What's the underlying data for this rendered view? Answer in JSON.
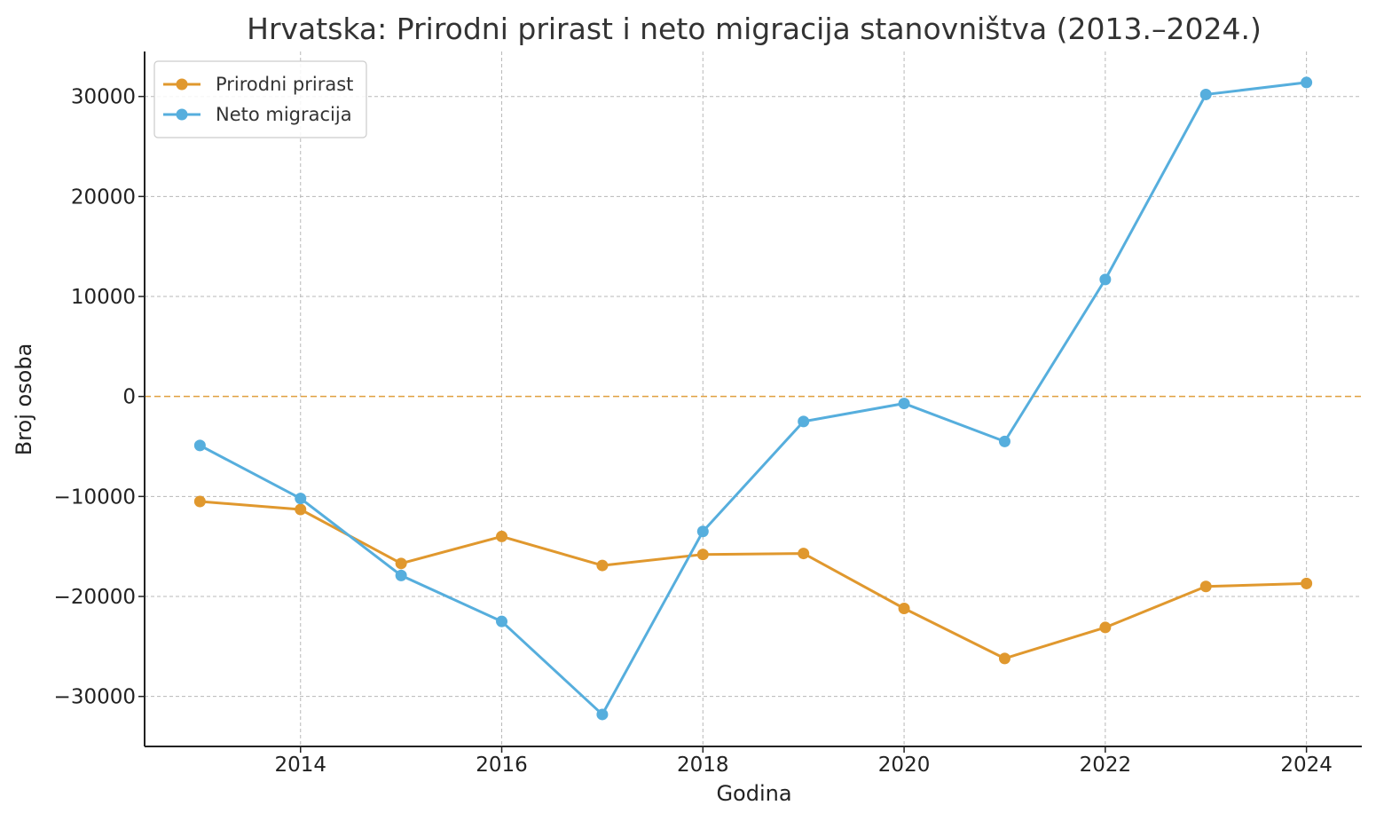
{
  "chart_data": {
    "type": "line",
    "title": "Hrvatska: Prirodni prirast i neto migracija stanovništva (2013.–2024.)",
    "xlabel": "Godina",
    "ylabel": "Broj osoba",
    "x": [
      2013,
      2014,
      2015,
      2016,
      2017,
      2018,
      2019,
      2020,
      2021,
      2022,
      2023,
      2024
    ],
    "xlim": [
      2012.45,
      2024.55
    ],
    "ylim": [
      -35000,
      34500
    ],
    "xticks": [
      2014,
      2016,
      2018,
      2020,
      2022,
      2024
    ],
    "xtick_labels": [
      "2014",
      "2016",
      "2018",
      "2020",
      "2022",
      "2024"
    ],
    "yticks": [
      -30000,
      -20000,
      -10000,
      0,
      10000,
      20000,
      30000
    ],
    "ytick_labels": [
      "−30000",
      "−20000",
      "−10000",
      "0",
      "10000",
      "20000",
      "30000"
    ],
    "grid": true,
    "zero_line": {
      "value": 0,
      "color": "#e0a040"
    },
    "legend_position": "top-left",
    "series": [
      {
        "name": "Prirodni prirast",
        "color": "#e0982e",
        "values": [
          -10500,
          -11300,
          -16700,
          -14000,
          -16900,
          -15800,
          -15700,
          -21200,
          -26200,
          -23100,
          -19000,
          -18700
        ]
      },
      {
        "name": "Neto migracija",
        "color": "#56aedd",
        "values": [
          -4900,
          -10200,
          -17900,
          -22500,
          -31800,
          -13500,
          -2500,
          -700,
          -4500,
          11700,
          30200,
          31400
        ]
      }
    ]
  }
}
